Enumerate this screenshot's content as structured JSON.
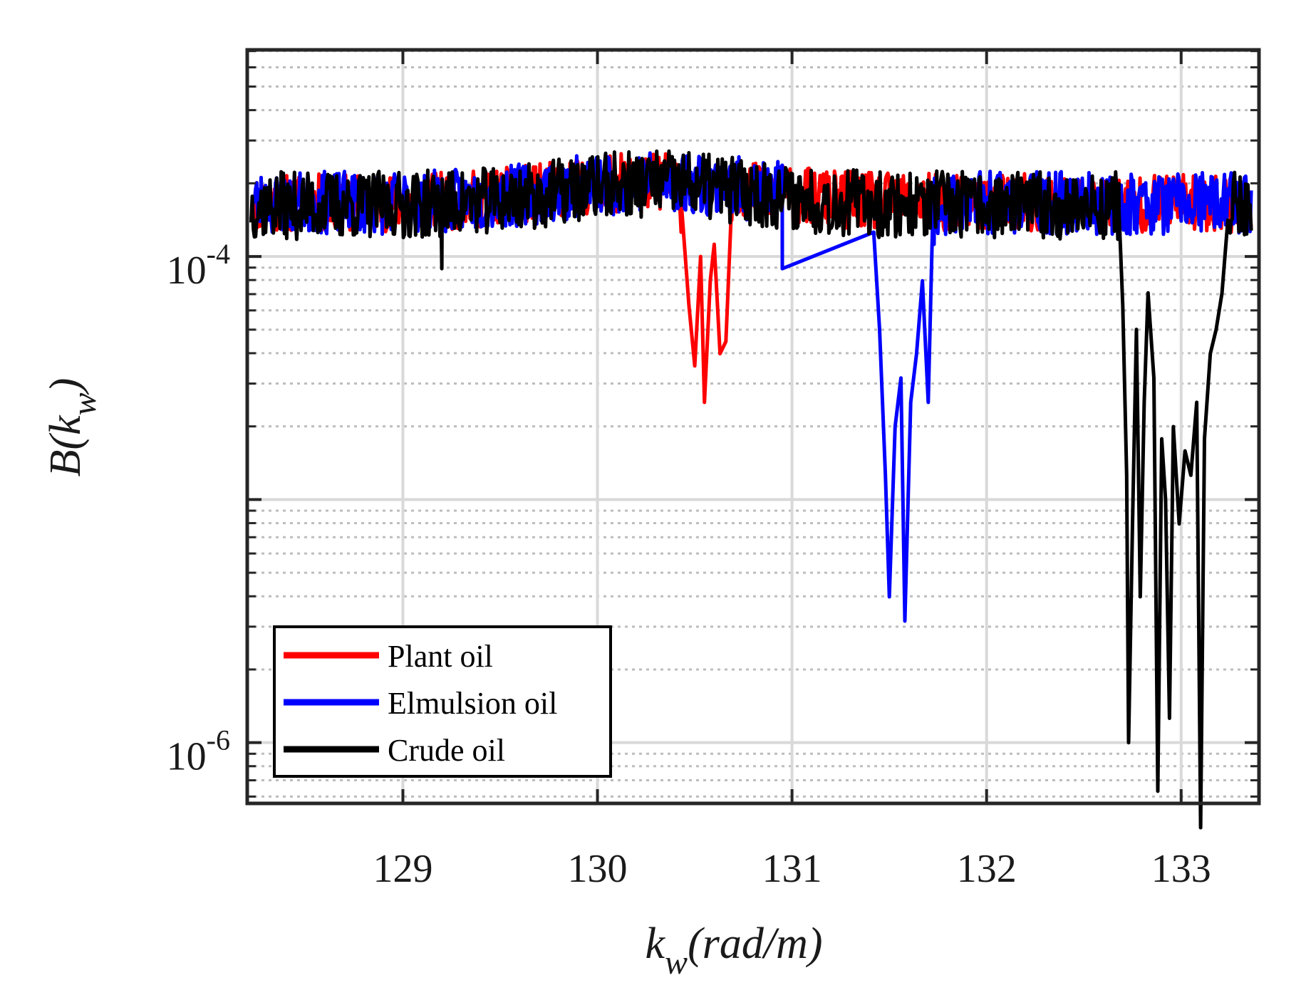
{
  "chart_data": {
    "type": "line",
    "title": "",
    "xlabel": "k_w(rad/m)",
    "xlabel_parts": {
      "base": "k",
      "sub": "w",
      "rest": "(rad/m)"
    },
    "ylabel": "B(k_w)",
    "ylabel_parts": {
      "pre": "B(k",
      "sub": "w",
      "post": ")"
    },
    "xlim": [
      128.2,
      133.4
    ],
    "ylim_log10": [
      -6.25,
      -3.15
    ],
    "yscale": "log",
    "grid": true,
    "xticks": [
      129,
      130,
      131,
      132,
      133
    ],
    "xtick_labels": [
      "129",
      "130",
      "131",
      "132",
      "133"
    ],
    "yticks_log10": [
      -4,
      -6
    ],
    "ytick_labels": [
      {
        "base": "10",
        "exp": "-4"
      },
      {
        "base": "10",
        "exp": "-6"
      }
    ],
    "legend_position": "bottom-left",
    "series": [
      {
        "name": "Plant oil",
        "color": "#ff0000",
        "baseline_log10": -3.78,
        "noise": 0.12,
        "seed": 11,
        "dips": [
          {
            "x": 130.43,
            "log10": -3.9
          },
          {
            "x": 130.47,
            "log10": -4.2
          },
          {
            "x": 130.5,
            "log10": -4.45
          },
          {
            "x": 130.53,
            "log10": -4.0
          },
          {
            "x": 130.55,
            "log10": -4.6
          },
          {
            "x": 130.58,
            "log10": -4.1
          },
          {
            "x": 130.6,
            "log10": -3.95
          },
          {
            "x": 130.63,
            "log10": -4.4
          },
          {
            "x": 130.66,
            "log10": -4.35
          },
          {
            "x": 130.69,
            "log10": -3.85
          }
        ]
      },
      {
        "name": "Elmulsion oil",
        "color": "#0000ff",
        "baseline_log10": -3.78,
        "noise": 0.13,
        "seed": 23,
        "dips": [
          {
            "x": 130.95,
            "log10": -4.05
          },
          {
            "x": 131.42,
            "log10": -3.9
          },
          {
            "x": 131.45,
            "log10": -4.3
          },
          {
            "x": 131.48,
            "log10": -4.9
          },
          {
            "x": 131.5,
            "log10": -5.4
          },
          {
            "x": 131.53,
            "log10": -4.7
          },
          {
            "x": 131.56,
            "log10": -4.5
          },
          {
            "x": 131.58,
            "log10": -5.5
          },
          {
            "x": 131.61,
            "log10": -4.6
          },
          {
            "x": 131.64,
            "log10": -4.4
          },
          {
            "x": 131.67,
            "log10": -4.1
          },
          {
            "x": 131.7,
            "log10": -4.6
          },
          {
            "x": 131.73,
            "log10": -3.95
          }
        ]
      },
      {
        "name": "Crude oil",
        "color": "#000000",
        "baseline_log10": -3.79,
        "noise": 0.14,
        "seed": 37,
        "dips": [
          {
            "x": 129.2,
            "log10": -4.05
          },
          {
            "x": 132.68,
            "log10": -3.7
          },
          {
            "x": 132.7,
            "log10": -4.2
          },
          {
            "x": 132.72,
            "log10": -4.9
          },
          {
            "x": 132.73,
            "log10": -6.0
          },
          {
            "x": 132.75,
            "log10": -5.1
          },
          {
            "x": 132.77,
            "log10": -4.3
          },
          {
            "x": 132.79,
            "log10": -5.4
          },
          {
            "x": 132.81,
            "log10": -4.6
          },
          {
            "x": 132.83,
            "log10": -4.15
          },
          {
            "x": 132.86,
            "log10": -4.5
          },
          {
            "x": 132.88,
            "log10": -6.2
          },
          {
            "x": 132.9,
            "log10": -4.75
          },
          {
            "x": 132.92,
            "log10": -5.0
          },
          {
            "x": 132.94,
            "log10": -5.9
          },
          {
            "x": 132.96,
            "log10": -4.7
          },
          {
            "x": 132.99,
            "log10": -5.1
          },
          {
            "x": 133.02,
            "log10": -4.8
          },
          {
            "x": 133.05,
            "log10": -4.9
          },
          {
            "x": 133.08,
            "log10": -4.6
          },
          {
            "x": 133.1,
            "log10": -6.35
          },
          {
            "x": 133.12,
            "log10": -4.75
          },
          {
            "x": 133.15,
            "log10": -4.4
          },
          {
            "x": 133.18,
            "log10": -4.3
          },
          {
            "x": 133.21,
            "log10": -4.15
          },
          {
            "x": 133.24,
            "log10": -3.85
          }
        ]
      }
    ]
  }
}
